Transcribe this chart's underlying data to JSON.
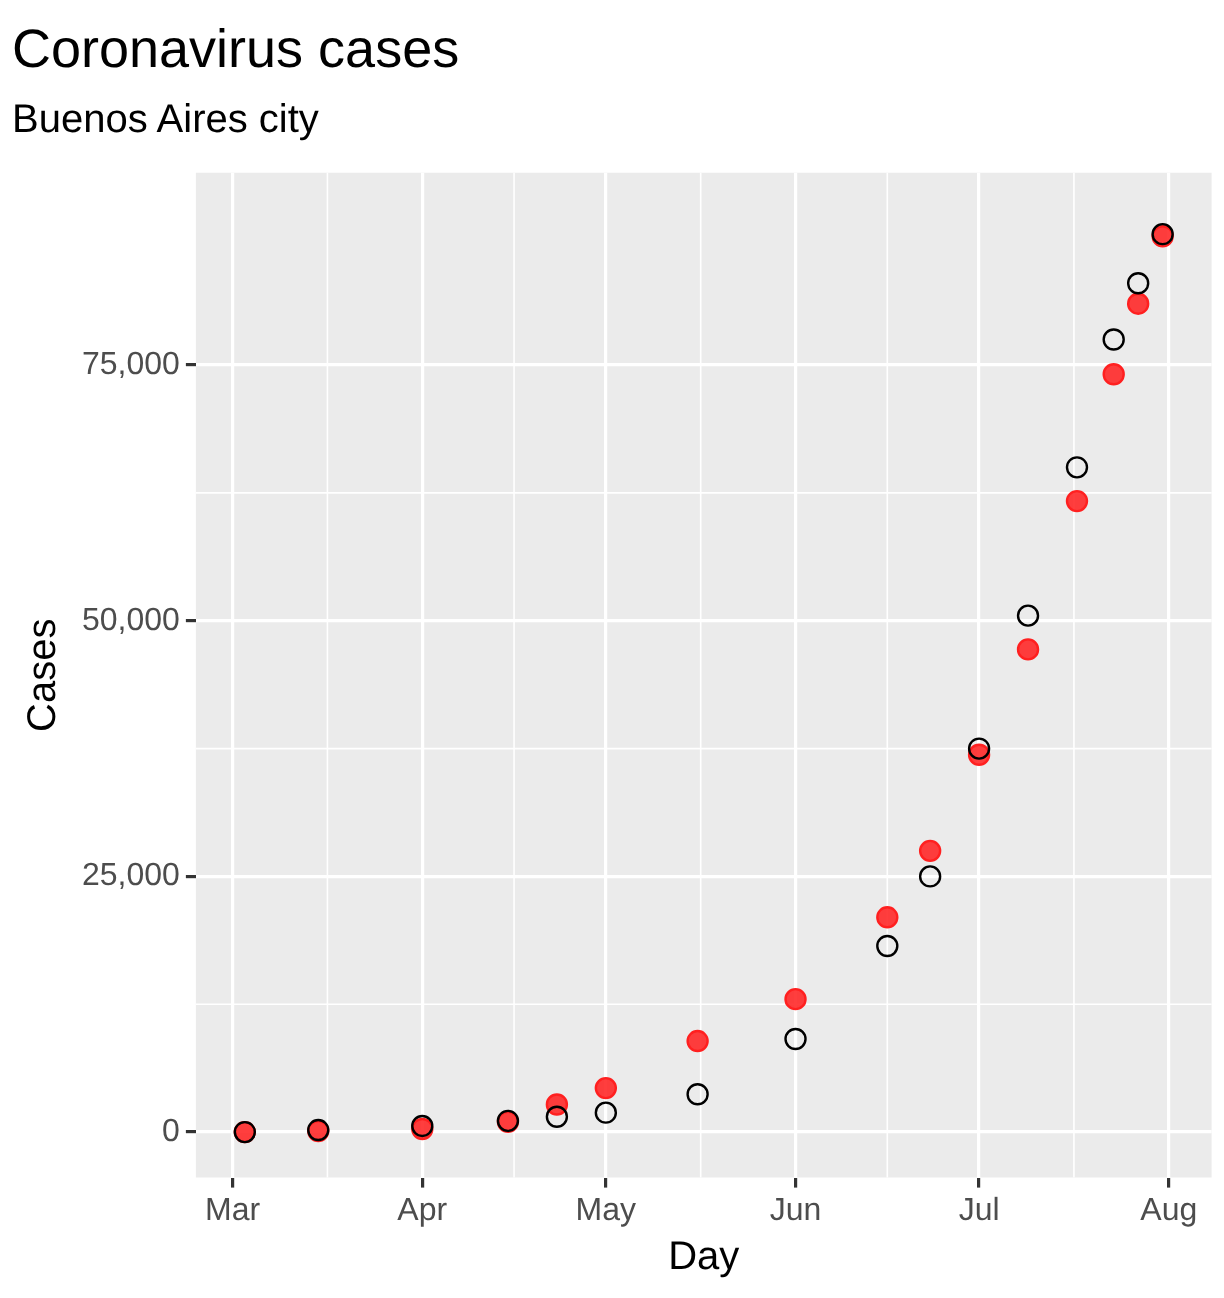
{
  "chart_data": {
    "type": "scatter",
    "title": "Coronavirus cases",
    "subtitle": "Buenos Aires city",
    "xlabel": "Day",
    "ylabel": "Cases",
    "x": [
      "--03-03",
      "--03-15",
      "--04-01",
      "--04-15",
      "--04-23",
      "--05-01",
      "--05-16",
      "--06-01",
      "--06-16",
      "--06-23",
      "--07-01",
      "--07-09",
      "--07-17",
      "--07-23",
      "--07-27",
      "--07-31"
    ],
    "series": [
      {
        "color": "#000000",
        "values": [
          0,
          200,
          600,
          1100,
          1500,
          1900,
          3700,
          9100,
          18200,
          25000,
          37500,
          50500,
          65000,
          77500,
          83000,
          87800
        ]
      },
      {
        "color": "#ff2020",
        "values": [
          0,
          100,
          300,
          1000,
          2700,
          4300,
          8900,
          13000,
          21000,
          27500,
          36900,
          47200,
          61700,
          74100,
          81000,
          87600
        ]
      }
    ],
    "xlim": [
      "--02-24",
      "--08-08"
    ],
    "xticks": [
      {
        "value": "--03-01",
        "label": "Mar"
      },
      {
        "value": "--04-01",
        "label": "Apr"
      },
      {
        "value": "--05-01",
        "label": "May"
      },
      {
        "value": "--06-01",
        "label": "Jun"
      },
      {
        "value": "--07-01",
        "label": "Jul"
      },
      {
        "value": "--08-01",
        "label": "Aug"
      }
    ],
    "ylim": [
      -4450,
      93800
    ],
    "yticks": [
      {
        "value": 0,
        "label": "0"
      },
      {
        "value": 25000,
        "label": "25,000"
      },
      {
        "value": 50000,
        "label": "50,000"
      },
      {
        "value": 75000,
        "label": "75,000"
      }
    ],
    "grid": true,
    "marker": "circle",
    "legend": false
  }
}
